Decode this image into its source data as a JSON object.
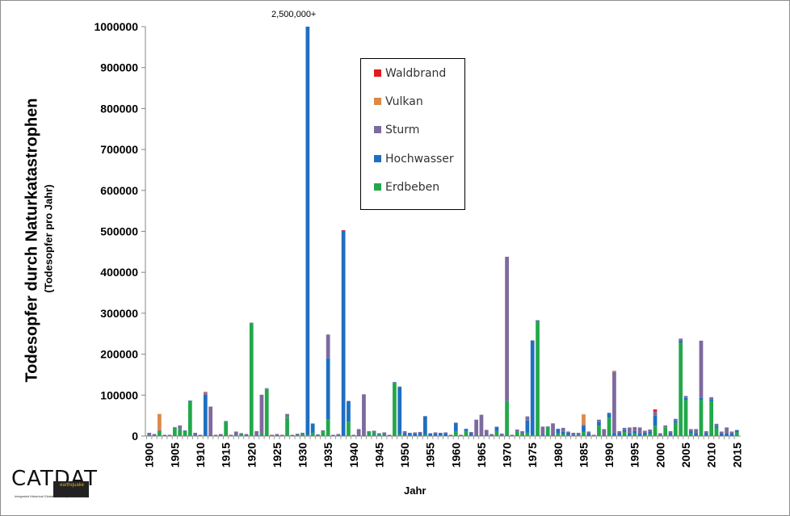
{
  "chart_data": {
    "type": "bar",
    "stacked": true,
    "ylabel": "Todesopfer durch Naturkatastrophen",
    "ylabel_sub": "(Todesopfer pro Jahr)",
    "xlabel": "Jahr",
    "ylim": [
      0,
      1000000
    ],
    "yticks": [
      "0",
      "100000",
      "200000",
      "300000",
      "400000",
      "500000",
      "600000",
      "700000",
      "800000",
      "900000",
      "1000000"
    ],
    "xticks": [
      "1900",
      "1905",
      "1910",
      "1915",
      "1920",
      "1925",
      "1930",
      "1935",
      "1940",
      "1945",
      "1950",
      "1955",
      "1960",
      "1965",
      "1970",
      "1975",
      "1980",
      "1985",
      "1990",
      "1995",
      "2000",
      "2005",
      "2010",
      "2015"
    ],
    "grid": false,
    "legend_position": "top-center",
    "annotation": "2,500,000+",
    "colors": {
      "Waldbrand": "#e41a1c",
      "Vulkan": "#d98a4a",
      "Sturm": "#7d6a9e",
      "Hochwasser": "#1f6fc1",
      "Erdbeben": "#22a84a"
    },
    "legend_order": [
      "Waldbrand",
      "Vulkan",
      "Sturm",
      "Hochwasser",
      "Erdbeben"
    ],
    "series_order": [
      "Erdbeben",
      "Hochwasser",
      "Sturm",
      "Vulkan",
      "Waldbrand"
    ],
    "categories": [
      1900,
      1901,
      1902,
      1903,
      1904,
      1905,
      1906,
      1907,
      1908,
      1909,
      1910,
      1911,
      1912,
      1913,
      1914,
      1915,
      1916,
      1917,
      1918,
      1919,
      1920,
      1921,
      1922,
      1923,
      1924,
      1925,
      1926,
      1927,
      1928,
      1929,
      1930,
      1931,
      1932,
      1933,
      1934,
      1935,
      1936,
      1937,
      1938,
      1939,
      1940,
      1941,
      1942,
      1943,
      1944,
      1945,
      1946,
      1947,
      1948,
      1949,
      1950,
      1951,
      1952,
      1953,
      1954,
      1955,
      1956,
      1957,
      1958,
      1959,
      1960,
      1961,
      1962,
      1963,
      1964,
      1965,
      1966,
      1967,
      1968,
      1969,
      1970,
      1971,
      1972,
      1973,
      1974,
      1975,
      1976,
      1977,
      1978,
      1979,
      1980,
      1981,
      1982,
      1983,
      1984,
      1985,
      1986,
      1987,
      1988,
      1989,
      1990,
      1991,
      1992,
      1993,
      1994,
      1995,
      1996,
      1997,
      1998,
      1999,
      2000,
      2001,
      2002,
      2003,
      2004,
      2005,
      2006,
      2007,
      2008,
      2009,
      2010,
      2011,
      2012,
      2013,
      2014,
      2015
    ],
    "series": [
      {
        "name": "Erdbeben",
        "values": [
          2000,
          1000,
          10000,
          1000,
          1000,
          20000,
          15000,
          12000,
          85000,
          2000,
          1000,
          1000,
          1000,
          1000,
          1000,
          35000,
          1000,
          2000,
          4000,
          1000,
          275000,
          1000,
          5000,
          115000,
          1000,
          1000,
          1000,
          45000,
          1000,
          3000,
          4000,
          3000,
          8000,
          2000,
          10000,
          40000,
          1000,
          1000,
          1000,
          35000,
          1000,
          1000,
          1000,
          10000,
          8000,
          5000,
          3000,
          1000,
          130000,
          5000,
          2000,
          2000,
          1000,
          2000,
          3000,
          1000,
          1000,
          2000,
          1000,
          1000,
          12000,
          1000,
          12000,
          2000,
          1000,
          1000,
          2000,
          1000,
          12000,
          2000,
          85000,
          1000,
          10000,
          6000,
          8000,
          3000,
          280000,
          2000,
          22000,
          2000,
          7000,
          5000,
          3000,
          2000,
          2000,
          10000,
          1000,
          1000,
          25000,
          1000,
          45000,
          2000,
          2000,
          10000,
          1000,
          7000,
          1000,
          3000,
          6000,
          25000,
          1000,
          20000,
          2000,
          32000,
          228000,
          88000,
          7000,
          2000,
          88000,
          2000,
          85000,
          20000,
          1000,
          1000,
          1000,
          9000
        ]
      },
      {
        "name": "Hochwasser",
        "values": [
          1000,
          1000,
          1000,
          1000,
          1000,
          1000,
          1000,
          1000,
          1000,
          1000,
          1000,
          100000,
          1000,
          1000,
          1000,
          1000,
          1000,
          1000,
          1000,
          1000,
          1000,
          1000,
          1000,
          1000,
          1000,
          1000,
          1000,
          1000,
          1000,
          1000,
          1000,
          1000000,
          22000,
          1000,
          1000,
          150000,
          1000,
          1000,
          500000,
          50000,
          1000,
          1000,
          1000,
          1000,
          1000,
          1000,
          1000,
          1000,
          1000,
          115000,
          5000,
          5000,
          5000,
          5000,
          45000,
          5000,
          5000,
          5000,
          5000,
          1000,
          20000,
          1000,
          5000,
          5000,
          1000,
          1000,
          1000,
          1000,
          10000,
          1000,
          1000,
          1000,
          1000,
          1000,
          30000,
          230000,
          1000,
          1000,
          1000,
          1000,
          10000,
          5000,
          5000,
          1000,
          1000,
          15000,
          5000,
          1000,
          10000,
          1000,
          10000,
          5000,
          5000,
          5000,
          5000,
          5000,
          5000,
          5000,
          5000,
          25000,
          1000,
          1000,
          5000,
          5000,
          5000,
          5000,
          5000,
          5000,
          5000,
          5000,
          5000,
          5000,
          5000,
          5000,
          5000,
          5000
        ]
      },
      {
        "name": "Sturm",
        "values": [
          5000,
          3000,
          3000,
          1000,
          1000,
          1000,
          10000,
          1000,
          1000,
          5000,
          1000,
          5000,
          70000,
          1000,
          3000,
          1000,
          1000,
          8000,
          1000,
          3000,
          1000,
          10000,
          95000,
          1000,
          1000,
          3000,
          1000,
          8000,
          1000,
          1000,
          3000,
          1000,
          1000,
          1000,
          3000,
          58000,
          1000,
          3000,
          1000,
          1000,
          1000,
          15000,
          100000,
          1000,
          4000,
          1000,
          5000,
          1000,
          1000,
          1000,
          5000,
          1000,
          3000,
          3000,
          1000,
          1000,
          3000,
          1000,
          3000,
          1000,
          1000,
          1000,
          1000,
          3000,
          38000,
          50000,
          12000,
          3000,
          1000,
          3000,
          352000,
          1000,
          5000,
          5000,
          10000,
          1000,
          2000,
          20000,
          1000,
          28000,
          1000,
          10000,
          3000,
          5000,
          5000,
          3000,
          5000,
          1000,
          5000,
          15000,
          2000,
          150000,
          5000,
          5000,
          15000,
          10000,
          15000,
          5000,
          5000,
          10000,
          5000,
          5000,
          5000,
          5000,
          5000,
          5000,
          5000,
          10000,
          140000,
          5000,
          5000,
          5000,
          5000,
          15000,
          5000,
          1000
        ]
      },
      {
        "name": "Vulkan",
        "values": [
          0,
          0,
          40000,
          0,
          0,
          0,
          0,
          0,
          0,
          0,
          0,
          1000,
          0,
          0,
          0,
          0,
          0,
          0,
          0,
          0,
          0,
          0,
          0,
          0,
          0,
          0,
          0,
          0,
          0,
          1000,
          0,
          0,
          0,
          0,
          0,
          0,
          0,
          0,
          0,
          0,
          0,
          0,
          0,
          0,
          0,
          0,
          0,
          0,
          0,
          0,
          0,
          0,
          0,
          0,
          0,
          0,
          0,
          0,
          0,
          0,
          0,
          0,
          0,
          0,
          0,
          0,
          0,
          0,
          0,
          0,
          0,
          0,
          0,
          0,
          0,
          0,
          0,
          0,
          0,
          0,
          0,
          0,
          0,
          0,
          0,
          25000,
          0,
          0,
          0,
          0,
          0,
          1000,
          0,
          0,
          0,
          0,
          0,
          0,
          0,
          0,
          0,
          0,
          0,
          0,
          0,
          0,
          0,
          0,
          0,
          0,
          0,
          0,
          0,
          0,
          0,
          0
        ]
      },
      {
        "name": "Waldbrand",
        "values": [
          0,
          0,
          0,
          0,
          0,
          0,
          0,
          0,
          0,
          0,
          0,
          1000,
          0,
          0,
          0,
          0,
          0,
          0,
          1000,
          0,
          0,
          0,
          0,
          0,
          0,
          0,
          0,
          0,
          0,
          0,
          0,
          0,
          0,
          0,
          0,
          0,
          0,
          0,
          1000,
          0,
          0,
          0,
          0,
          0,
          0,
          0,
          0,
          0,
          0,
          0,
          0,
          0,
          0,
          0,
          0,
          0,
          0,
          0,
          0,
          0,
          0,
          0,
          0,
          0,
          0,
          0,
          0,
          0,
          0,
          0,
          0,
          0,
          0,
          0,
          0,
          0,
          0,
          0,
          0,
          0,
          0,
          0,
          0,
          0,
          0,
          0,
          0,
          0,
          0,
          0,
          0,
          1000,
          0,
          0,
          0,
          0,
          0,
          0,
          0,
          5000,
          0,
          0,
          0,
          0,
          0,
          0,
          0,
          0,
          0,
          0,
          0,
          0,
          0,
          0,
          0,
          0
        ]
      }
    ]
  }
}
